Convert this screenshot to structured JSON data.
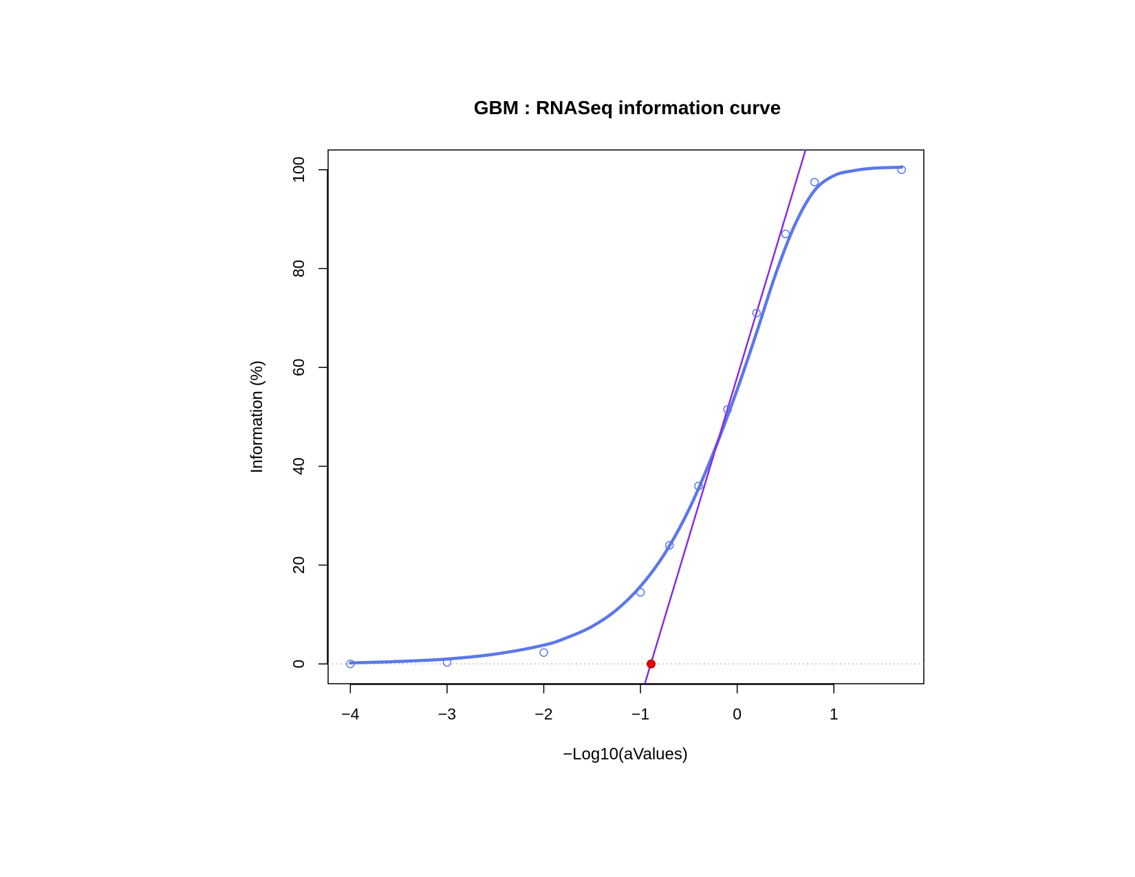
{
  "chart_data": {
    "type": "scatter",
    "title": "GBM : RNASeq information curve",
    "xlabel": "−Log10(aValues)",
    "ylabel": "Information (%)",
    "xlim": [
      -4.23,
      1.93
    ],
    "ylim": [
      -4,
      104
    ],
    "x_ticks": [
      "−4",
      "−3",
      "−2",
      "−1",
      "0",
      "1"
    ],
    "x_tick_values": [
      -4,
      -3,
      -2,
      -1,
      0,
      1
    ],
    "y_ticks": [
      "0",
      "20",
      "40",
      "60",
      "80",
      "100"
    ],
    "y_tick_values": [
      0,
      20,
      40,
      60,
      80,
      100
    ],
    "grid": false,
    "colors": {
      "points": "#5b78ea",
      "fit_curve": "#5b78ea",
      "tangent_line": "#8a2be2",
      "intercept_point": "#e00000",
      "zero_reference": "#bbbbbb"
    },
    "series": [
      {
        "kind": "points",
        "x": [
          -4,
          -3,
          -2,
          -1,
          -0.7,
          -0.4,
          -0.1,
          0.2,
          0.5,
          0.8,
          1.7
        ],
        "y": [
          0,
          0.3,
          2.3,
          14.5,
          24,
          36,
          51.5,
          71,
          87,
          97.5,
          100
        ]
      },
      {
        "kind": "fit_curve",
        "x": [
          -4,
          -3.5,
          -3,
          -2.5,
          -2,
          -1.75,
          -1.5,
          -1.25,
          -1,
          -0.75,
          -0.5,
          -0.25,
          0,
          0.2,
          0.4,
          0.6,
          0.8,
          1.0,
          1.2,
          1.4,
          1.7
        ],
        "y": [
          0.2,
          0.5,
          1.0,
          2.0,
          3.8,
          5.4,
          7.6,
          10.9,
          15.7,
          22.3,
          31.2,
          42.5,
          55.5,
          67.0,
          79.0,
          89.0,
          95.8,
          98.8,
          99.8,
          100.3,
          100.5
        ]
      },
      {
        "kind": "tangent_line",
        "x": [
          -0.955,
          0.707
        ],
        "y": [
          -4,
          104
        ]
      },
      {
        "kind": "intercept_point",
        "x": [
          -0.89
        ],
        "y": [
          0
        ]
      },
      {
        "kind": "zero_reference",
        "x": [
          -4.23,
          1.93
        ],
        "y": [
          0,
          0
        ]
      }
    ]
  }
}
